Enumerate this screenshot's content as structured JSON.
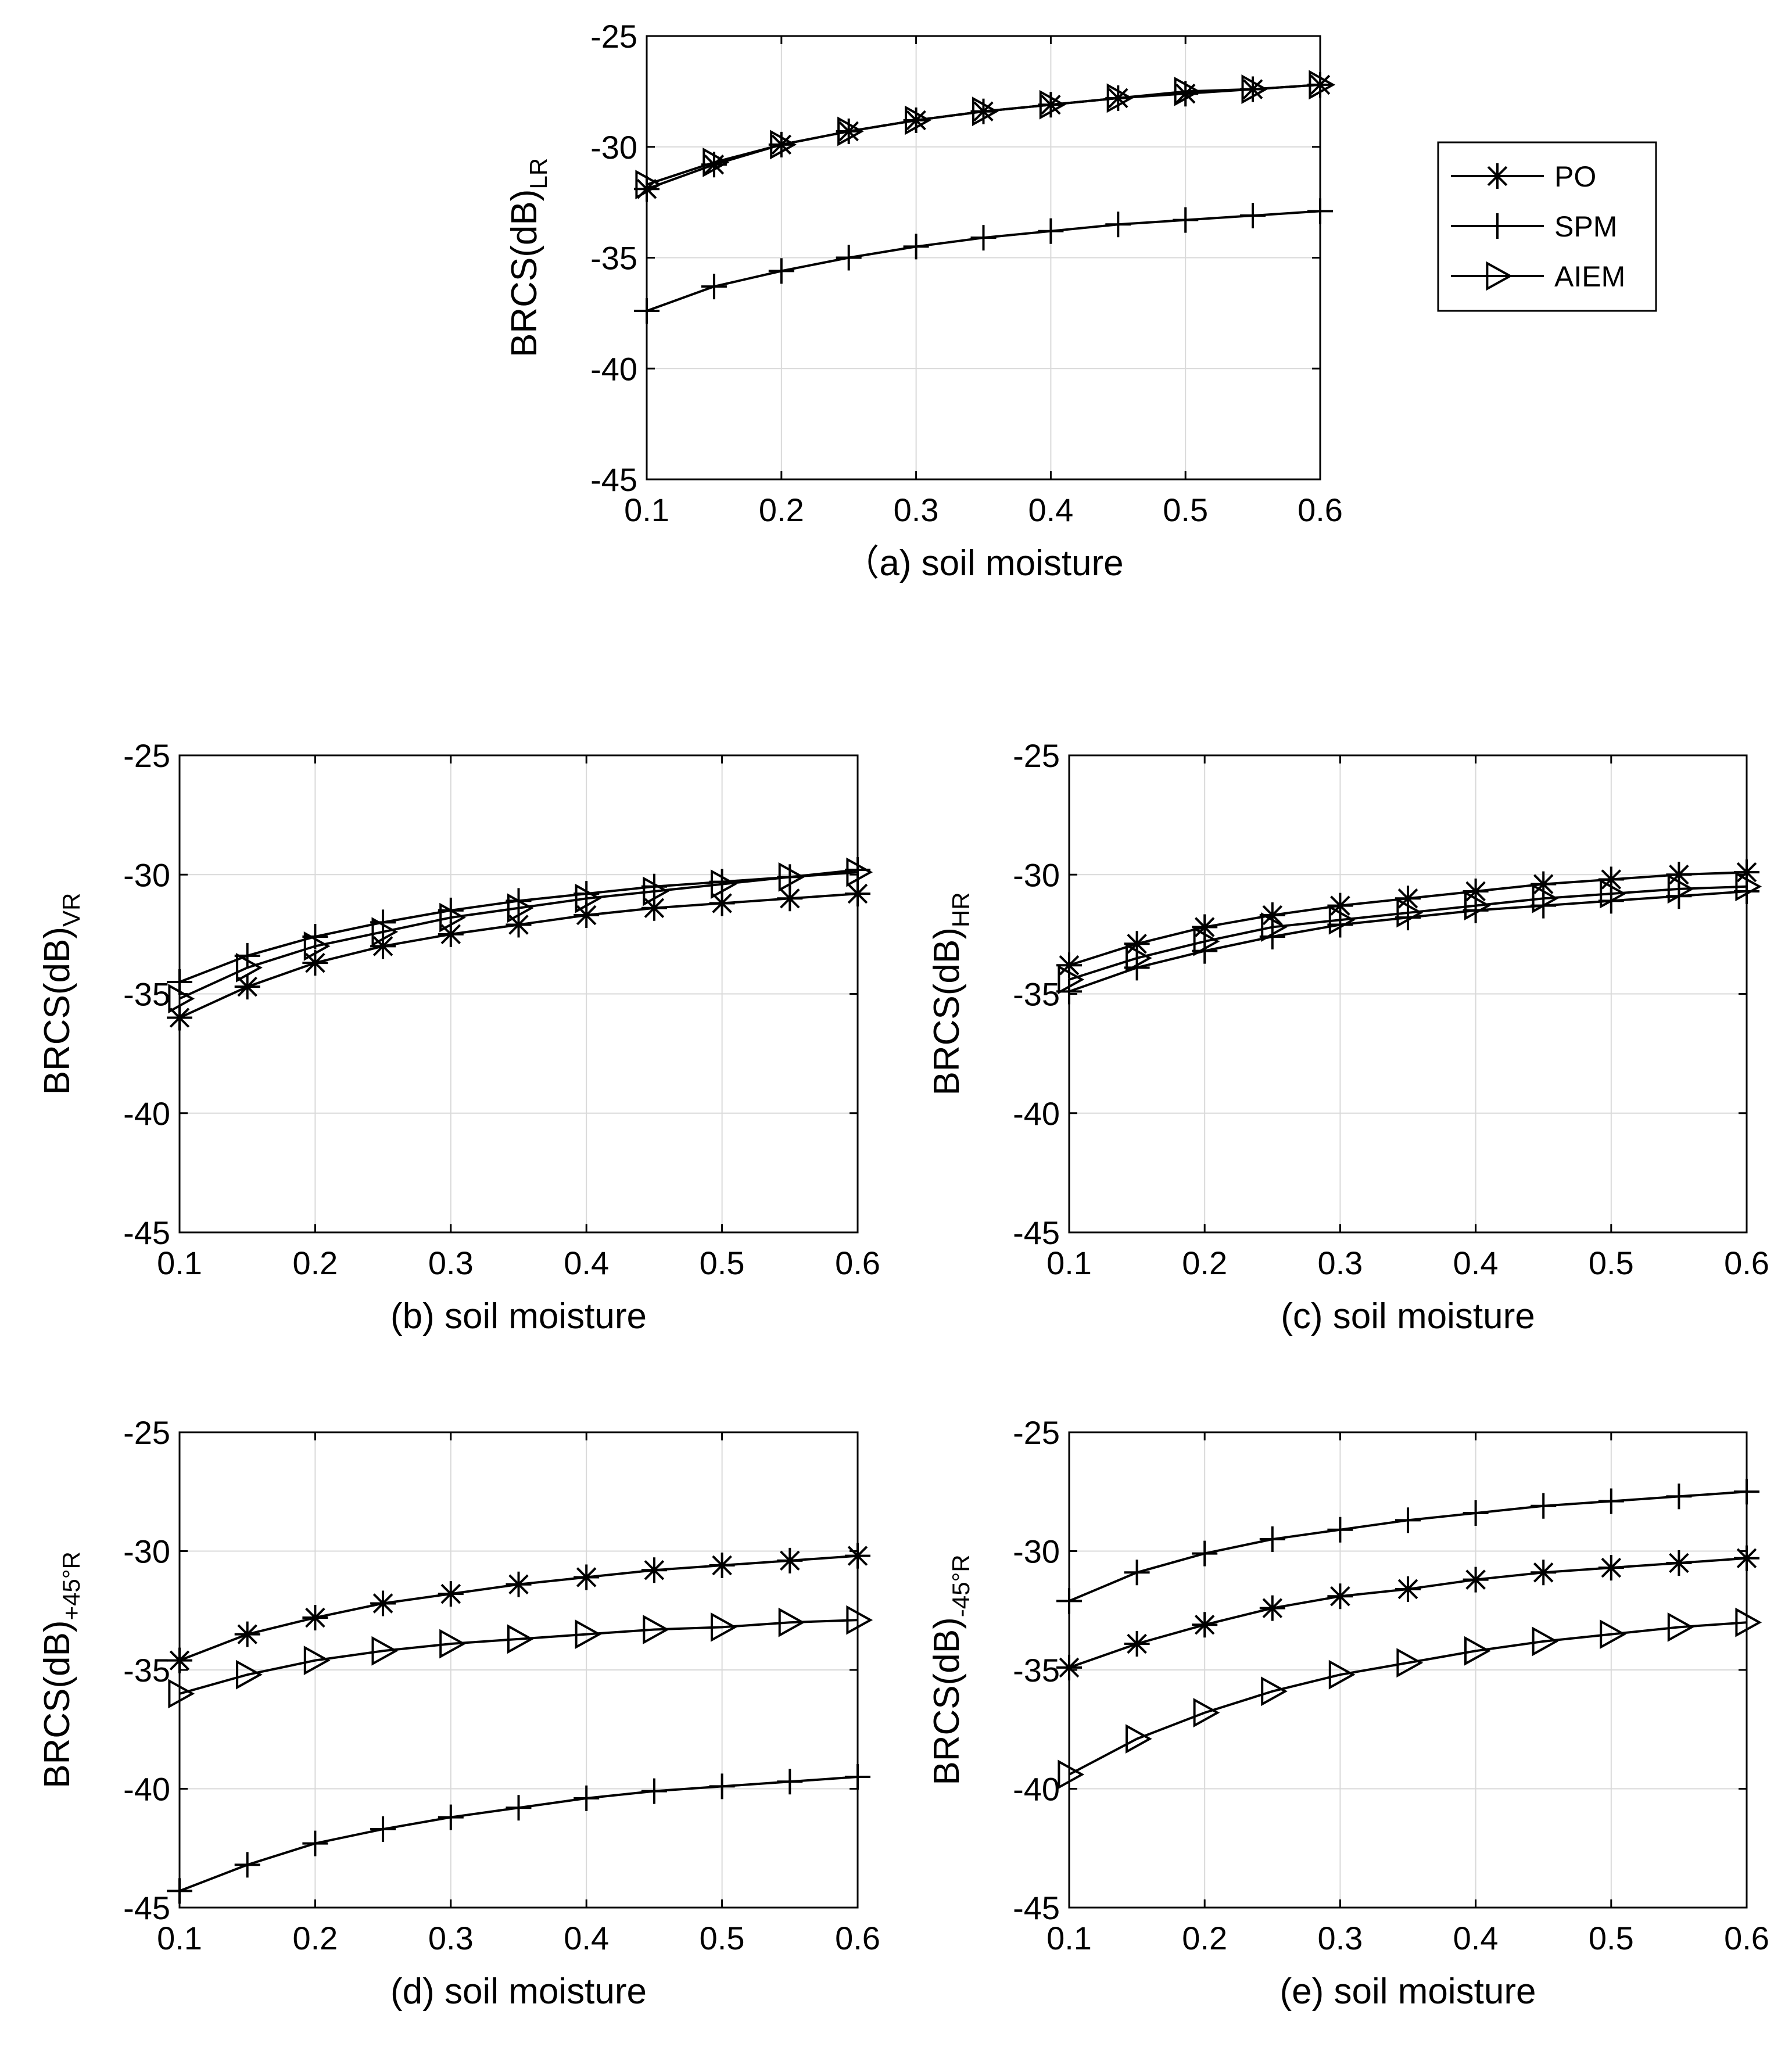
{
  "chart_data": [
    {
      "type": "line",
      "panel": "a",
      "xlabel": "（a) soil moisture",
      "ylabel_main": "BRCS(dB)",
      "ylabel_sub": "LR",
      "xlim": [
        0.1,
        0.6
      ],
      "ylim": [
        -45,
        -25
      ],
      "xticks": [
        "0.1",
        "0.2",
        "0.3",
        "0.4",
        "0.5",
        "0.6"
      ],
      "yticks": [
        "-25",
        "-30",
        "-35",
        "-40",
        "-45"
      ],
      "grid": true,
      "x": [
        0.1,
        0.15,
        0.2,
        0.25,
        0.3,
        0.35,
        0.4,
        0.45,
        0.5,
        0.55,
        0.6
      ],
      "series": [
        {
          "name": "PO",
          "marker": "asterisk",
          "values": [
            -31.9,
            -30.8,
            -29.9,
            -29.3,
            -28.8,
            -28.4,
            -28.1,
            -27.8,
            -27.6,
            -27.4,
            -27.2
          ]
        },
        {
          "name": "SPM",
          "marker": "plus",
          "values": [
            -37.4,
            -36.3,
            -35.6,
            -35.0,
            -34.5,
            -34.1,
            -33.8,
            -33.5,
            -33.3,
            -33.1,
            -32.9
          ]
        },
        {
          "name": "AIEM",
          "marker": "triangle-right",
          "values": [
            -31.7,
            -30.7,
            -29.9,
            -29.3,
            -28.8,
            -28.4,
            -28.1,
            -27.8,
            -27.5,
            -27.4,
            -27.2
          ]
        }
      ],
      "legend": {
        "position": "right",
        "entries": [
          "PO",
          "SPM",
          "AIEM"
        ]
      }
    },
    {
      "type": "line",
      "panel": "b",
      "xlabel": "(b) soil moisture",
      "ylabel_main": "BRCS(dB)",
      "ylabel_sub": "VR",
      "xlim": [
        0.1,
        0.6
      ],
      "ylim": [
        -45,
        -25
      ],
      "xticks": [
        "0.1",
        "0.2",
        "0.3",
        "0.4",
        "0.5",
        "0.6"
      ],
      "yticks": [
        "-25",
        "-30",
        "-35",
        "-40",
        "-45"
      ],
      "grid": true,
      "x": [
        0.1,
        0.15,
        0.2,
        0.25,
        0.3,
        0.35,
        0.4,
        0.45,
        0.5,
        0.55,
        0.6
      ],
      "series": [
        {
          "name": "PO",
          "marker": "asterisk",
          "values": [
            -36.0,
            -34.7,
            -33.7,
            -33.0,
            -32.5,
            -32.1,
            -31.7,
            -31.4,
            -31.2,
            -31.0,
            -30.8
          ]
        },
        {
          "name": "SPM",
          "marker": "plus",
          "values": [
            -34.5,
            -33.4,
            -32.6,
            -32.0,
            -31.5,
            -31.1,
            -30.8,
            -30.5,
            -30.3,
            -30.1,
            -29.8
          ]
        },
        {
          "name": "AIEM",
          "marker": "triangle-right",
          "values": [
            -35.2,
            -33.9,
            -33.0,
            -32.4,
            -31.8,
            -31.4,
            -31.0,
            -30.7,
            -30.4,
            -30.1,
            -29.9
          ]
        }
      ]
    },
    {
      "type": "line",
      "panel": "c",
      "xlabel": "(c) soil moisture",
      "ylabel_main": "BRCS(dB)",
      "ylabel_sub": "HR",
      "xlim": [
        0.1,
        0.6
      ],
      "ylim": [
        -45,
        -25
      ],
      "xticks": [
        "0.1",
        "0.2",
        "0.3",
        "0.4",
        "0.5",
        "0.6"
      ],
      "yticks": [
        "-25",
        "-30",
        "-35",
        "-40",
        "-45"
      ],
      "grid": true,
      "x": [
        0.1,
        0.15,
        0.2,
        0.25,
        0.3,
        0.35,
        0.4,
        0.45,
        0.5,
        0.55,
        0.6
      ],
      "series": [
        {
          "name": "PO",
          "marker": "asterisk",
          "values": [
            -33.8,
            -32.9,
            -32.2,
            -31.7,
            -31.3,
            -31.0,
            -30.7,
            -30.4,
            -30.2,
            -30.0,
            -29.9
          ]
        },
        {
          "name": "SPM",
          "marker": "plus",
          "values": [
            -34.9,
            -33.9,
            -33.2,
            -32.6,
            -32.1,
            -31.8,
            -31.5,
            -31.3,
            -31.1,
            -30.9,
            -30.7
          ]
        },
        {
          "name": "AIEM",
          "marker": "triangle-right",
          "values": [
            -34.4,
            -33.5,
            -32.8,
            -32.2,
            -31.9,
            -31.6,
            -31.3,
            -31.0,
            -30.8,
            -30.6,
            -30.5
          ]
        }
      ]
    },
    {
      "type": "line",
      "panel": "d",
      "xlabel": "(d) soil moisture",
      "ylabel_main": "BRCS(dB)",
      "ylabel_sub": "+45°R",
      "xlim": [
        0.1,
        0.6
      ],
      "ylim": [
        -45,
        -25
      ],
      "xticks": [
        "0.1",
        "0.2",
        "0.3",
        "0.4",
        "0.5",
        "0.6"
      ],
      "yticks": [
        "-25",
        "-30",
        "-35",
        "-40",
        "-45"
      ],
      "grid": true,
      "x": [
        0.1,
        0.15,
        0.2,
        0.25,
        0.3,
        0.35,
        0.4,
        0.45,
        0.5,
        0.55,
        0.6
      ],
      "series": [
        {
          "name": "PO",
          "marker": "asterisk",
          "values": [
            -34.6,
            -33.5,
            -32.8,
            -32.2,
            -31.8,
            -31.4,
            -31.1,
            -30.8,
            -30.6,
            -30.4,
            -30.2
          ]
        },
        {
          "name": "SPM",
          "marker": "plus",
          "values": [
            -44.3,
            -43.2,
            -42.3,
            -41.7,
            -41.2,
            -40.8,
            -40.4,
            -40.1,
            -39.9,
            -39.7,
            -39.5
          ]
        },
        {
          "name": "AIEM",
          "marker": "triangle-right",
          "values": [
            -36.0,
            -35.2,
            -34.6,
            -34.2,
            -33.9,
            -33.7,
            -33.5,
            -33.3,
            -33.2,
            -33.0,
            -32.9
          ]
        }
      ]
    },
    {
      "type": "line",
      "panel": "e",
      "xlabel": "(e) soil moisture",
      "ylabel_main": "BRCS(dB)",
      "ylabel_sub": "-45°R",
      "xlim": [
        0.1,
        0.6
      ],
      "ylim": [
        -45,
        -25
      ],
      "xticks": [
        "0.1",
        "0.2",
        "0.3",
        "0.4",
        "0.5",
        "0.6"
      ],
      "yticks": [
        "-25",
        "-30",
        "-35",
        "-40",
        "-45"
      ],
      "grid": true,
      "x": [
        0.1,
        0.15,
        0.2,
        0.25,
        0.3,
        0.35,
        0.4,
        0.45,
        0.5,
        0.55,
        0.6
      ],
      "series": [
        {
          "name": "PO",
          "marker": "asterisk",
          "values": [
            -34.9,
            -33.9,
            -33.1,
            -32.4,
            -31.9,
            -31.6,
            -31.2,
            -30.9,
            -30.7,
            -30.5,
            -30.3
          ]
        },
        {
          "name": "SPM",
          "marker": "plus",
          "values": [
            -32.1,
            -30.9,
            -30.1,
            -29.5,
            -29.1,
            -28.7,
            -28.4,
            -28.1,
            -27.9,
            -27.7,
            -27.5
          ]
        },
        {
          "name": "AIEM",
          "marker": "triangle-right",
          "values": [
            -39.4,
            -37.9,
            -36.8,
            -35.9,
            -35.2,
            -34.7,
            -34.2,
            -33.8,
            -33.5,
            -33.2,
            -33.0
          ]
        }
      ]
    }
  ]
}
